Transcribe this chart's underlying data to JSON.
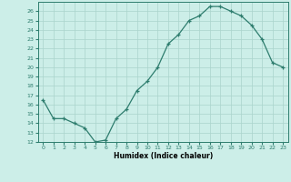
{
  "x": [
    0,
    1,
    2,
    3,
    4,
    5,
    6,
    7,
    8,
    9,
    10,
    11,
    12,
    13,
    14,
    15,
    16,
    17,
    18,
    19,
    20,
    21,
    22,
    23
  ],
  "y": [
    16.5,
    14.5,
    14.5,
    14.0,
    13.5,
    12.0,
    12.2,
    14.5,
    15.5,
    17.5,
    18.5,
    20.0,
    22.5,
    23.5,
    25.0,
    25.5,
    26.5,
    26.5,
    26.0,
    25.5,
    24.5,
    23.0,
    20.5,
    20.0
  ],
  "xlabel": "Humidex (Indice chaleur)",
  "xlim": [
    -0.5,
    23.5
  ],
  "ylim": [
    12,
    27
  ],
  "yticks": [
    12,
    13,
    14,
    15,
    16,
    17,
    18,
    19,
    20,
    21,
    22,
    23,
    24,
    25,
    26
  ],
  "xticks": [
    0,
    1,
    2,
    3,
    4,
    5,
    6,
    7,
    8,
    9,
    10,
    11,
    12,
    13,
    14,
    15,
    16,
    17,
    18,
    19,
    20,
    21,
    22,
    23
  ],
  "line_color": "#2e7d6e",
  "marker": "+",
  "bg_color": "#cceee8",
  "grid_color": "#aad4cc",
  "axis_bg": "#cceee8",
  "tick_color": "#2e7d6e",
  "label_color": "#000000"
}
